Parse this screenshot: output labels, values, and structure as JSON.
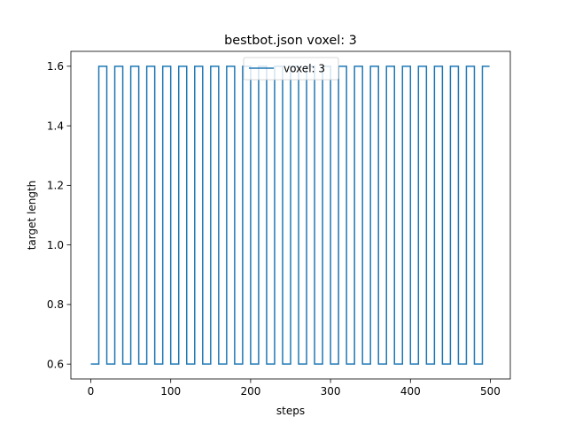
{
  "chart_data": {
    "type": "line",
    "title": "bestbot.json voxel: 3",
    "xlabel": "steps",
    "ylabel": "target length",
    "xlim": [
      -24.95,
      524.95
    ],
    "ylim": [
      0.55,
      1.65
    ],
    "xticks": [
      0,
      100,
      200,
      300,
      400,
      500
    ],
    "xtick_labels": [
      "0",
      "100",
      "200",
      "300",
      "400",
      "500"
    ],
    "yticks": [
      0.6,
      0.8,
      1.0,
      1.2,
      1.4,
      1.6
    ],
    "ytick_labels": [
      "0.6",
      "0.8",
      "1.0",
      "1.2",
      "1.4",
      "1.6"
    ],
    "grid": false,
    "legend_position": "top-center",
    "series": [
      {
        "name": "voxel: 3",
        "color": "#1f77b4",
        "x": [
          0,
          10,
          10,
          20,
          20,
          30,
          30,
          40,
          40,
          50,
          50,
          60,
          60,
          70,
          70,
          80,
          80,
          90,
          90,
          100,
          100,
          110,
          110,
          120,
          120,
          130,
          130,
          140,
          140,
          150,
          150,
          160,
          160,
          170,
          170,
          180,
          180,
          190,
          190,
          200,
          200,
          210,
          210,
          220,
          220,
          230,
          230,
          240,
          240,
          250,
          250,
          260,
          260,
          270,
          270,
          280,
          280,
          290,
          290,
          300,
          300,
          310,
          310,
          320,
          320,
          330,
          330,
          340,
          340,
          350,
          350,
          360,
          360,
          370,
          370,
          380,
          380,
          390,
          390,
          400,
          400,
          410,
          410,
          420,
          420,
          430,
          430,
          440,
          440,
          450,
          450,
          460,
          460,
          470,
          470,
          480,
          480,
          490,
          490,
          499
        ],
        "y": [
          0.6,
          0.6,
          1.6,
          1.6,
          0.6,
          0.6,
          1.6,
          1.6,
          0.6,
          0.6,
          1.6,
          1.6,
          0.6,
          0.6,
          1.6,
          1.6,
          0.6,
          0.6,
          1.6,
          1.6,
          0.6,
          0.6,
          1.6,
          1.6,
          0.6,
          0.6,
          1.6,
          1.6,
          0.6,
          0.6,
          1.6,
          1.6,
          0.6,
          0.6,
          1.6,
          1.6,
          0.6,
          0.6,
          1.6,
          1.6,
          0.6,
          0.6,
          1.6,
          1.6,
          0.6,
          0.6,
          1.6,
          1.6,
          0.6,
          0.6,
          1.6,
          1.6,
          0.6,
          0.6,
          1.6,
          1.6,
          0.6,
          0.6,
          1.6,
          1.6,
          0.6,
          0.6,
          1.6,
          1.6,
          0.6,
          0.6,
          1.6,
          1.6,
          0.6,
          0.6,
          1.6,
          1.6,
          0.6,
          0.6,
          1.6,
          1.6,
          0.6,
          0.6,
          1.6,
          1.6,
          0.6,
          0.6,
          1.6,
          1.6,
          0.6,
          0.6,
          1.6,
          1.6,
          0.6,
          0.6,
          1.6,
          1.6,
          0.6,
          0.6,
          1.6,
          1.6,
          0.6,
          0.6,
          1.6,
          1.6
        ]
      }
    ]
  }
}
